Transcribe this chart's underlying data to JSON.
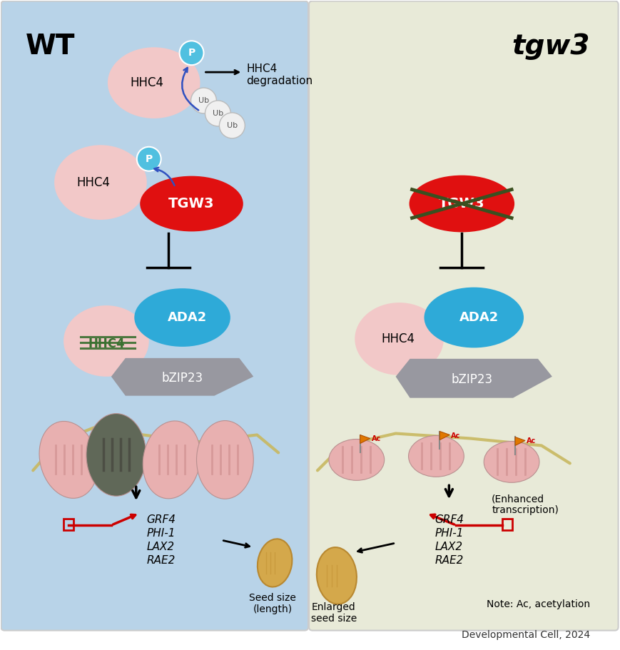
{
  "left_bg": "#b8d3e8",
  "right_bg": "#e8ead8",
  "title_left": "WT",
  "title_right": "tgw3",
  "source_label": "Developmental Cell, 2024",
  "note_label": "Note: Ac, acetylation",
  "hhc4_color": "#f2c8c8",
  "tgw3_color": "#e01010",
  "ada2_color": "#2eaad8",
  "bzip23_color": "#9898a0",
  "p_color": "#50c0e0",
  "ub_color": "#f0f0f0",
  "blue_arrow_color": "#3050c0",
  "hhc4_green_color": "#3a7030",
  "promoter_color": "#cc0000",
  "nuc_pink": "#e8b0b0",
  "nuc_dark": "#606858",
  "dna_color": "#c8b860",
  "seed_color": "#d4a84b",
  "seed_edge": "#b88830"
}
